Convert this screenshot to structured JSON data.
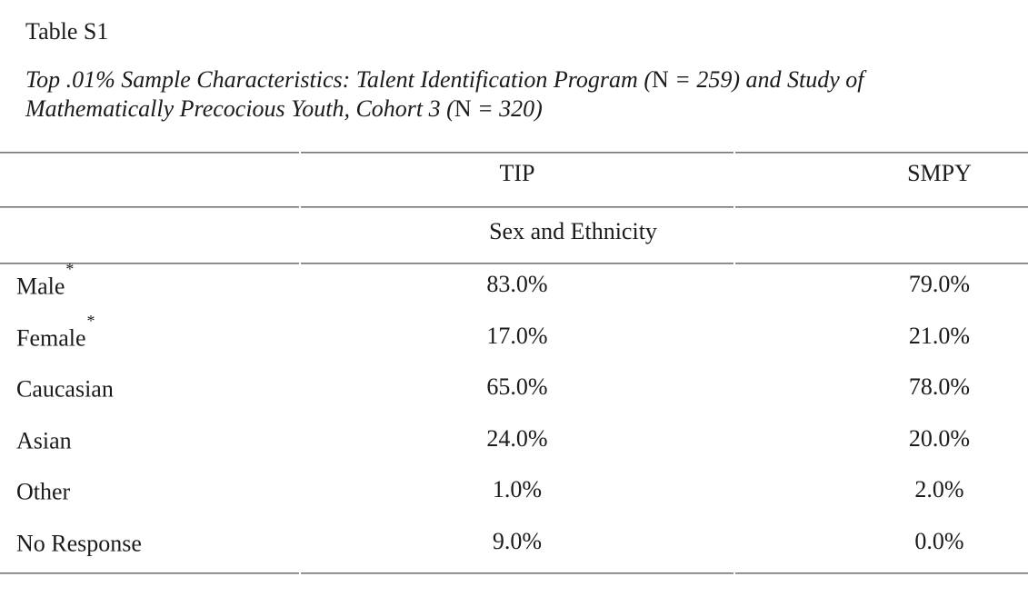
{
  "document": {
    "table_number": "Table S1",
    "caption": {
      "line1": {
        "part_italic_a": "Top .01% Sample Characteristics: Talent Identification Program (",
        "part_upright_n": "N",
        "part_italic_b": " = 259) and Study of"
      },
      "line2": {
        "part_italic_a": "Mathematically Precocious Youth, Cohort 3 (",
        "part_upright_n": "N",
        "part_italic_b": " = 320)"
      }
    }
  },
  "table": {
    "columns": {
      "tip": "TIP",
      "smpy": "SMPY"
    },
    "section_header": "Sex and Ethnicity",
    "rows": [
      {
        "label": "Male",
        "sup": "*",
        "tip": "83.0%",
        "smpy": "79.0%"
      },
      {
        "label": "Female",
        "sup": "*",
        "tip": "17.0%",
        "smpy": "21.0%"
      },
      {
        "label": "Caucasian",
        "sup": "",
        "tip": "65.0%",
        "smpy": "78.0%"
      },
      {
        "label": "Asian",
        "sup": "",
        "tip": "24.0%",
        "smpy": "20.0%"
      },
      {
        "label": "Other",
        "sup": "",
        "tip": "1.0%",
        "smpy": "2.0%"
      },
      {
        "label": "No Response",
        "sup": "",
        "tip": "9.0%",
        "smpy": "0.0%"
      }
    ]
  },
  "colors": {
    "text": "#1b1b1b",
    "rule_dark": "#767676",
    "rule_light": "#a9a9a9",
    "background": "#ffffff"
  }
}
